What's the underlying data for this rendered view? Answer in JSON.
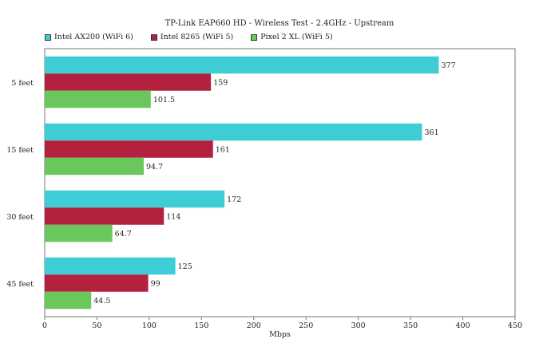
{
  "chart_data": {
    "type": "bar",
    "orientation": "horizontal",
    "title": "TP-Link EAP660 HD - Wireless Test - 2.4GHz - Upstream",
    "xlabel": "Mbps",
    "ylabel": "",
    "categories": [
      "5  feet",
      "15 feet",
      "30 feet",
      "45 feet"
    ],
    "series": [
      {
        "name": "Intel AX200 (WiFi 6)",
        "color": "#3ecdd4",
        "values": [
          377,
          361,
          172,
          125
        ],
        "labels": [
          "377",
          "361",
          "172",
          "125"
        ]
      },
      {
        "name": "Intel 8265 (WiFi 5)",
        "color": "#b3213e",
        "values": [
          159,
          161,
          114,
          99
        ],
        "labels": [
          "159",
          "161",
          "114",
          "99"
        ]
      },
      {
        "name": "Pixel 2 XL (WiFi 5)",
        "color": "#6ac75c",
        "values": [
          101.5,
          94.7,
          64.7,
          44.5
        ],
        "labels": [
          "101.5",
          "94.7",
          "64.7",
          "44.5"
        ]
      }
    ],
    "xlim": [
      0,
      450
    ],
    "xticks": [
      0,
      50,
      100,
      150,
      200,
      250,
      300,
      350,
      400,
      450
    ],
    "grid": false,
    "legend": "top-left"
  }
}
